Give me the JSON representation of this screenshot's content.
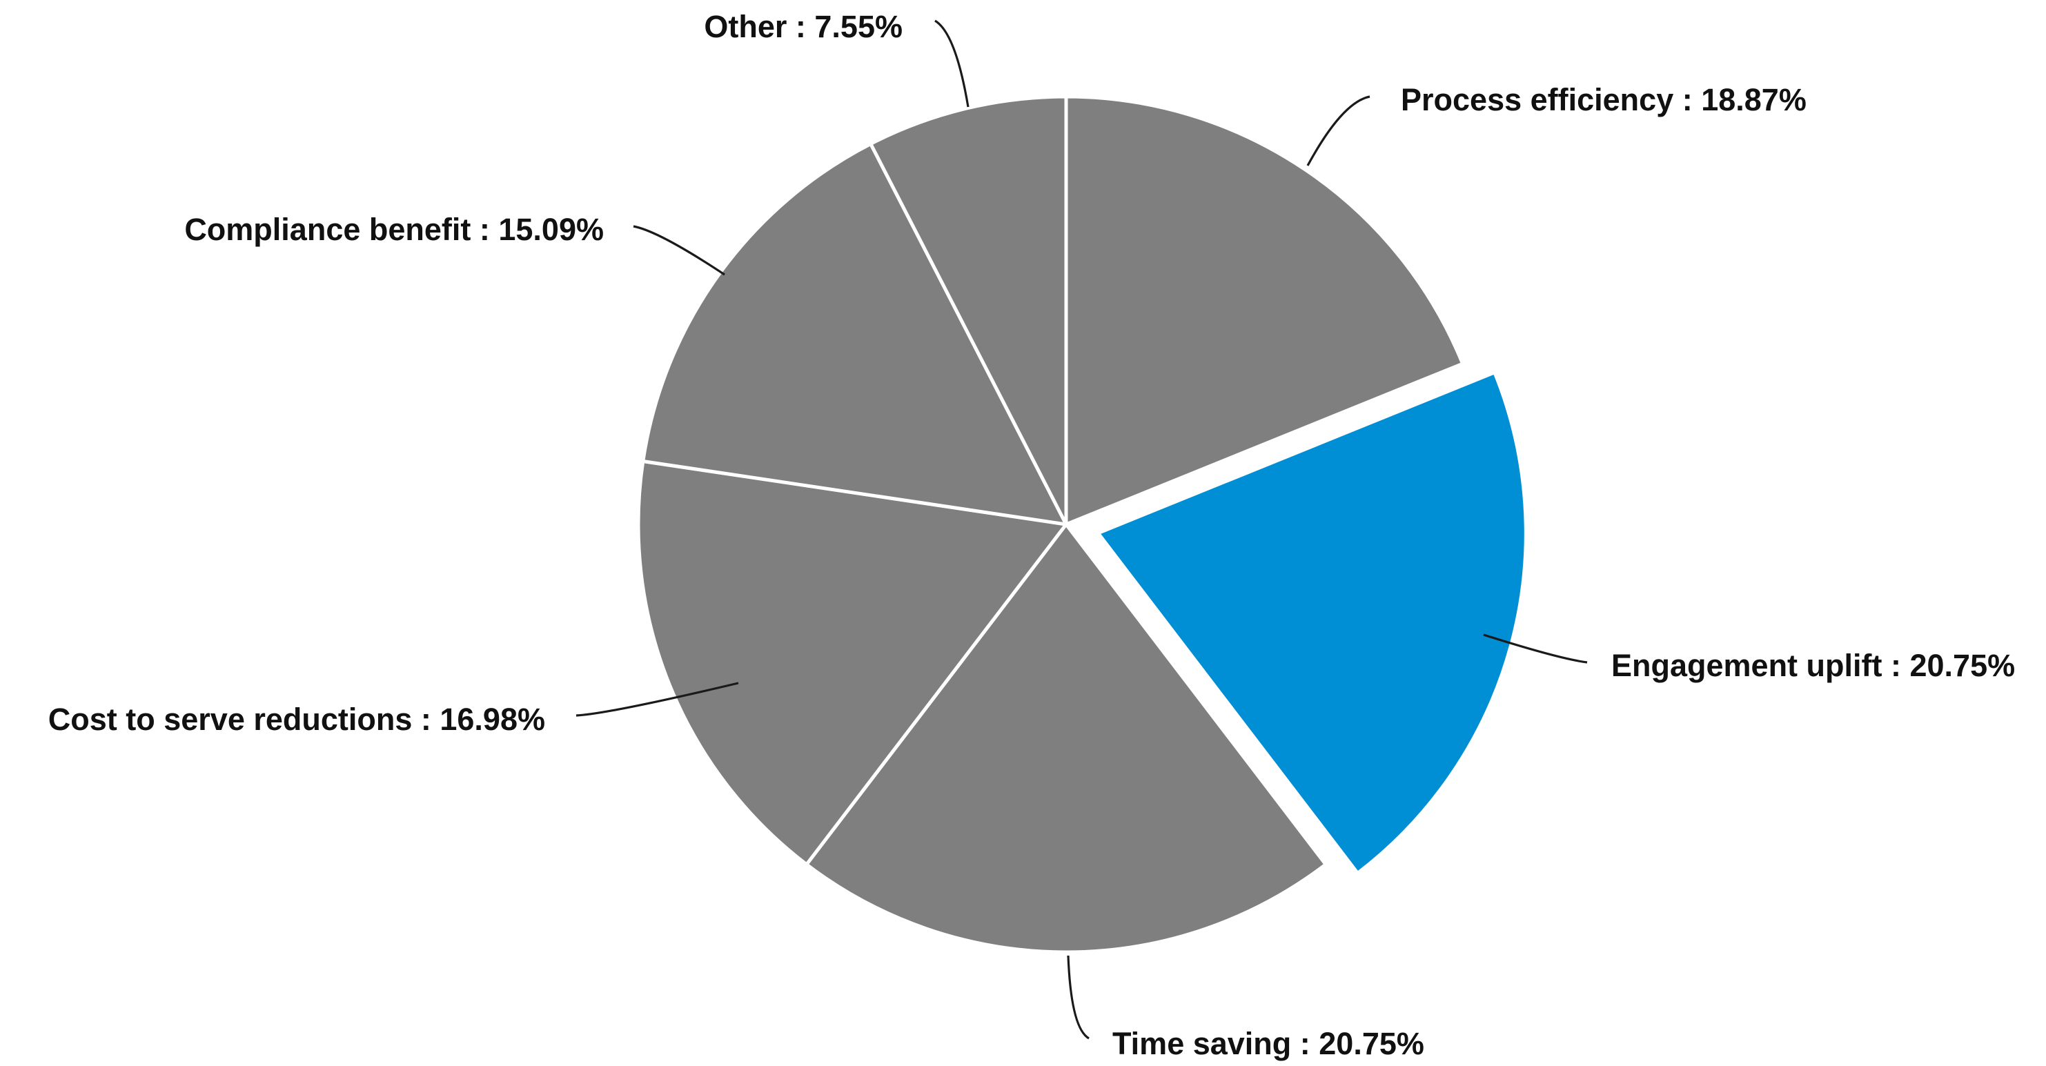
{
  "chart_data": {
    "type": "pie",
    "start_angle_deg": 0,
    "direction": "clockwise",
    "slices": [
      {
        "label": "Process efficiency",
        "value": 18.87,
        "display": "Process efficiency : 18.87%",
        "color": "#7f7f7f",
        "exploded": false
      },
      {
        "label": "Engagement uplift",
        "value": 20.75,
        "display": "Engagement uplift : 20.75%",
        "color": "#008fd5",
        "exploded": true
      },
      {
        "label": "Time saving",
        "value": 20.75,
        "display": "Time saving : 20.75%",
        "color": "#7f7f7f",
        "exploded": false
      },
      {
        "label": "Cost to serve reductions",
        "value": 16.98,
        "display": "Cost to serve reductions : 16.98%",
        "color": "#7f7f7f",
        "exploded": false
      },
      {
        "label": "Compliance benefit",
        "value": 15.09,
        "display": "Compliance benefit : 15.09%",
        "color": "#7f7f7f",
        "exploded": false
      },
      {
        "label": "Other",
        "value": 7.55,
        "display": "Other : 7.55%",
        "color": "#7f7f7f",
        "exploded": false
      }
    ]
  }
}
